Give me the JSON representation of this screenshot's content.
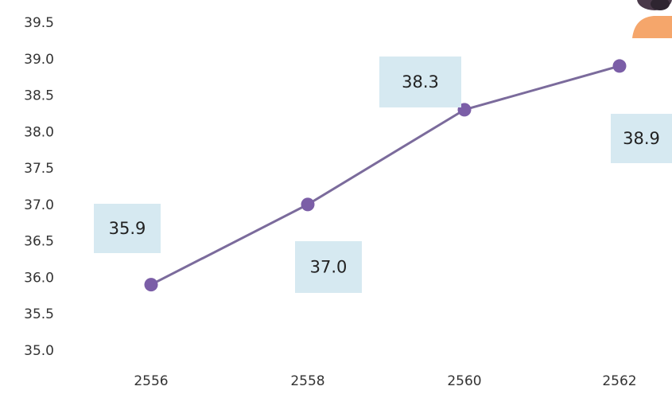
{
  "chart_data": {
    "type": "line",
    "title": "",
    "xlabel": "",
    "ylabel": "",
    "x": [
      "2556",
      "2558",
      "2560",
      "2562"
    ],
    "series": [
      {
        "values": [
          35.9,
          37.0,
          38.3,
          38.9
        ],
        "data_labels": [
          "35.9",
          "37.0",
          "38.3",
          "38.9"
        ]
      }
    ],
    "y_ticks": [
      "35.0",
      "35.5",
      "36.0",
      "36.5",
      "37.0",
      "37.5",
      "38.0",
      "38.5",
      "39.0",
      "39.5"
    ],
    "ylim": [
      35.0,
      39.5
    ],
    "grid": false,
    "legend": "none",
    "colors": {
      "line": "#7b6b9c",
      "marker": "#7b5ea7",
      "label_box": "#d6e9f1",
      "tick_text": "#333333"
    },
    "decoration": {
      "icon": "person-avatar-icon",
      "skin": "#f5a66b",
      "hair": "#4a3a4a"
    }
  }
}
